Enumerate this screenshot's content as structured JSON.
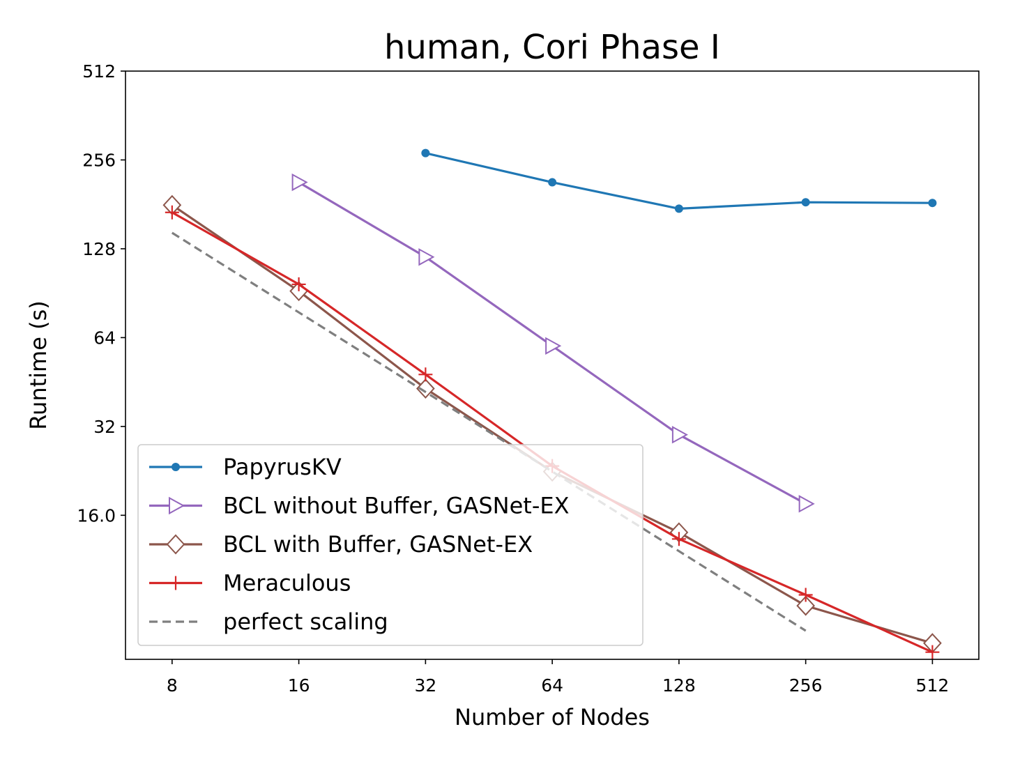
{
  "chart_data": {
    "type": "line",
    "title": "human, Cori Phase I",
    "xlabel": "Number of Nodes",
    "ylabel": "Runtime (s)",
    "x_scale": "log2",
    "y_scale": "log2",
    "xlim": [
      6.2,
      660
    ],
    "ylim": [
      5.2,
      512
    ],
    "x_ticks": [
      8,
      16,
      32,
      64,
      128,
      256,
      512
    ],
    "x_tick_labels": [
      "8",
      "16",
      "32",
      "64",
      "128",
      "256",
      "512"
    ],
    "y_ticks": [
      16,
      32,
      64,
      128,
      256,
      512
    ],
    "y_tick_labels": [
      "16.0",
      "32",
      "64",
      "128",
      "256",
      "512"
    ],
    "legend_position": "lower-left",
    "series": [
      {
        "name": "PapyrusKV",
        "color": "#1f77b4",
        "marker": "dot",
        "dash": false,
        "x": [
          32,
          64,
          128,
          256,
          512
        ],
        "y": [
          270,
          215,
          175,
          184,
          183
        ]
      },
      {
        "name": "BCL without Buffer, GASNet-EX",
        "color": "#9467bd",
        "marker": "triangle-right",
        "dash": false,
        "x": [
          16,
          32,
          64,
          128,
          256
        ],
        "y": [
          215,
          120,
          60,
          30,
          17.5
        ]
      },
      {
        "name": "BCL with Buffer, GASNet-EX",
        "color": "#8c564b",
        "marker": "diamond",
        "dash": false,
        "x": [
          8,
          16,
          32,
          64,
          128,
          256,
          512
        ],
        "y": [
          180,
          92,
          43,
          22.5,
          14,
          7.9,
          5.9
        ]
      },
      {
        "name": "Meraculous",
        "color": "#d62728",
        "marker": "plus",
        "dash": false,
        "x": [
          8,
          16,
          32,
          64,
          128,
          256,
          512
        ],
        "y": [
          170,
          97,
          48,
          23.5,
          13.3,
          8.6,
          5.5
        ]
      },
      {
        "name": "perfect scaling",
        "color": "#7f7f7f",
        "marker": "none",
        "dash": true,
        "x": [
          8,
          256
        ],
        "y": [
          145,
          6.5
        ]
      }
    ]
  }
}
